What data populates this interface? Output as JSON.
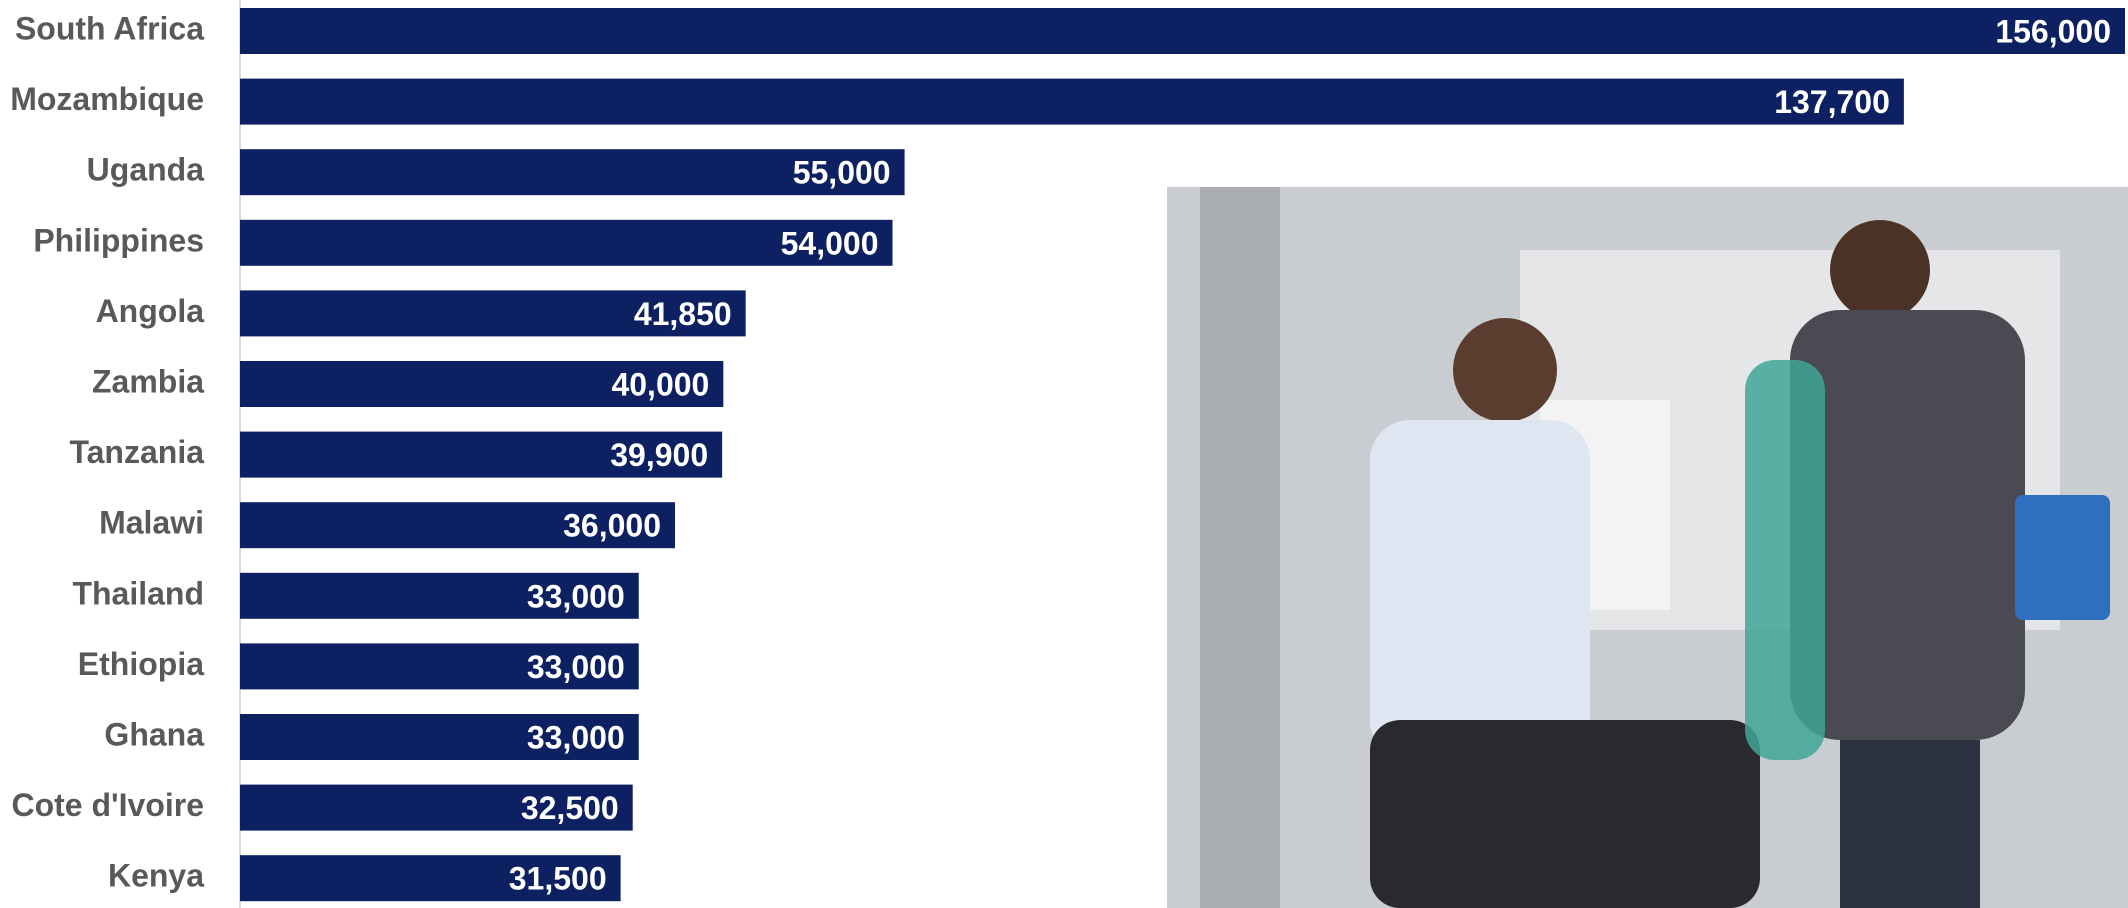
{
  "chart_data": {
    "type": "bar",
    "orientation": "horizontal",
    "categories": [
      "South Africa",
      "Mozambique",
      "Uganda",
      "Philippines",
      "Angola",
      "Zambia",
      "Tanzania",
      "Malawi",
      "Thailand",
      "Ethiopia",
      "Ghana",
      "Cote d'Ivoire",
      "Kenya"
    ],
    "values": [
      156000,
      137700,
      55000,
      54000,
      41850,
      40000,
      39900,
      36000,
      33000,
      33000,
      33000,
      32500,
      31500
    ],
    "value_labels": [
      "156,000",
      "137,700",
      "55,000",
      "54,000",
      "41,850",
      "40,000",
      "39,900",
      "36,000",
      "33,000",
      "33,000",
      "33,000",
      "32,500",
      "31,500"
    ],
    "color": "#0c2062"
  }
}
